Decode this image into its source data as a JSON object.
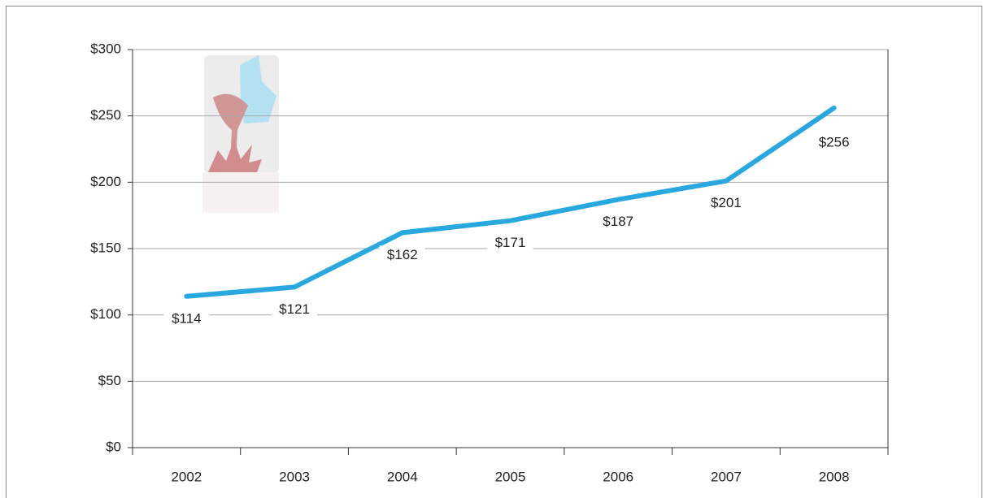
{
  "chart_data": {
    "type": "line",
    "categories": [
      "2002",
      "2003",
      "2004",
      "2005",
      "2006",
      "2007",
      "2008"
    ],
    "values": [
      114,
      121,
      162,
      171,
      187,
      201,
      256
    ],
    "value_labels": [
      "$114",
      "$121",
      "$162",
      "$171",
      "$187",
      "$201",
      "$256"
    ],
    "color": "#29a8e0",
    "ylim": [
      0,
      300
    ],
    "yticks": [
      {
        "value": 0,
        "label": "$0"
      },
      {
        "value": 50,
        "label": "$50"
      },
      {
        "value": 100,
        "label": "$100"
      },
      {
        "value": 150,
        "label": "$150"
      },
      {
        "value": 200,
        "label": "$200"
      },
      {
        "value": 250,
        "label": "$250"
      },
      {
        "value": 300,
        "label": "$300"
      }
    ],
    "grid": true
  }
}
